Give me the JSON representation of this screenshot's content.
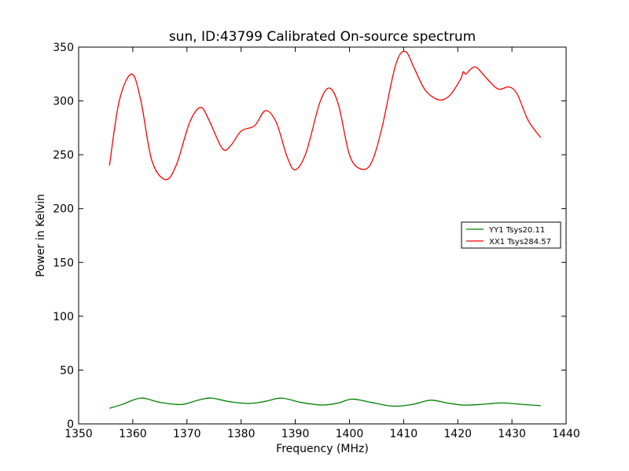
{
  "chart_data": {
    "type": "line",
    "title": "sun, ID:43799 Calibrated On-source spectrum",
    "xlabel": "Frequency (MHz)",
    "ylabel": "Power in Kelvin",
    "xlim": [
      1350,
      1440
    ],
    "ylim": [
      0,
      350
    ],
    "xticks": [
      1350,
      1360,
      1370,
      1380,
      1390,
      1400,
      1410,
      1420,
      1430,
      1440
    ],
    "yticks": [
      0,
      50,
      100,
      150,
      200,
      250,
      300,
      350
    ],
    "grid": false,
    "legend_position": "center-right",
    "series": [
      {
        "name": "YY1 Tsys20.11",
        "color": "#008000",
        "x": [
          1355.7,
          1358,
          1361.5,
          1365,
          1369,
          1372,
          1374.5,
          1378,
          1381.5,
          1384.5,
          1387.5,
          1391,
          1395,
          1398,
          1400.5,
          1404,
          1408,
          1411.5,
          1415,
          1418,
          1421,
          1424,
          1426.5,
          1428.5,
          1431,
          1433.5,
          1435.3
        ],
        "y": [
          14.5,
          18,
          24,
          20,
          18,
          22,
          24,
          20.5,
          19,
          21,
          24,
          20,
          17.5,
          19.5,
          23,
          20,
          16.5,
          18,
          22,
          19.5,
          17.5,
          18,
          19,
          19.5,
          18.5,
          17.5,
          17
        ]
      },
      {
        "name": "XX1 Tsys284.57",
        "color": "#ff0000",
        "x": [
          1355.7,
          1357.5,
          1359.8,
          1361.5,
          1363.5,
          1366,
          1368,
          1370.5,
          1372.5,
          1374,
          1376.5,
          1378,
          1380,
          1382.5,
          1384.5,
          1386.5,
          1388.5,
          1390,
          1392,
          1394.5,
          1396.3,
          1398,
          1400,
          1402,
          1404,
          1406,
          1408.5,
          1410.3,
          1412,
          1414,
          1416.5,
          1418.5,
          1420.5,
          1421,
          1421.5,
          1422.5,
          1423.5,
          1425.5,
          1427.5,
          1429.5,
          1431,
          1433,
          1435.3
        ],
        "y": [
          240,
          300,
          325,
          300,
          245,
          227,
          240,
          280,
          294,
          283,
          256,
          258,
          272,
          277,
          291,
          280,
          248,
          236,
          252,
          298,
          312,
          296,
          250,
          237,
          242,
          275,
          333,
          346,
          330,
          310,
          301,
          305,
          320,
          327,
          325,
          330,
          331,
          320,
          311,
          313,
          306,
          282,
          266
        ]
      }
    ]
  }
}
